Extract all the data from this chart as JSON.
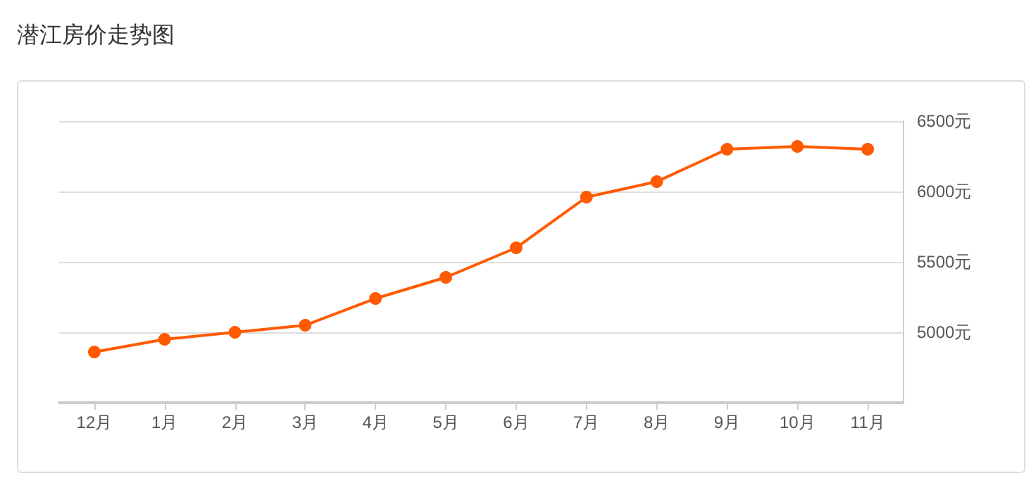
{
  "chart_data": {
    "type": "line",
    "title": "潜江房价走势图",
    "categories": [
      "12月",
      "1月",
      "2月",
      "3月",
      "4月",
      "5月",
      "6月",
      "7月",
      "8月",
      "9月",
      "10月",
      "11月"
    ],
    "series": [
      {
        "color": "#ff5a00",
        "values": [
          4860,
          4950,
          5000,
          5050,
          5240,
          5390,
          5600,
          5960,
          6070,
          6300,
          6320,
          6300
        ]
      }
    ],
    "ylim": [
      4500,
      6500
    ],
    "yticks": [
      {
        "value": 5000,
        "label": "5000元"
      },
      {
        "value": 5500,
        "label": "5500元"
      },
      {
        "value": 6000,
        "label": "6000元"
      },
      {
        "value": 6500,
        "label": "6500元"
      }
    ],
    "grid": "y",
    "marker": "circle",
    "line_style": "solid"
  }
}
